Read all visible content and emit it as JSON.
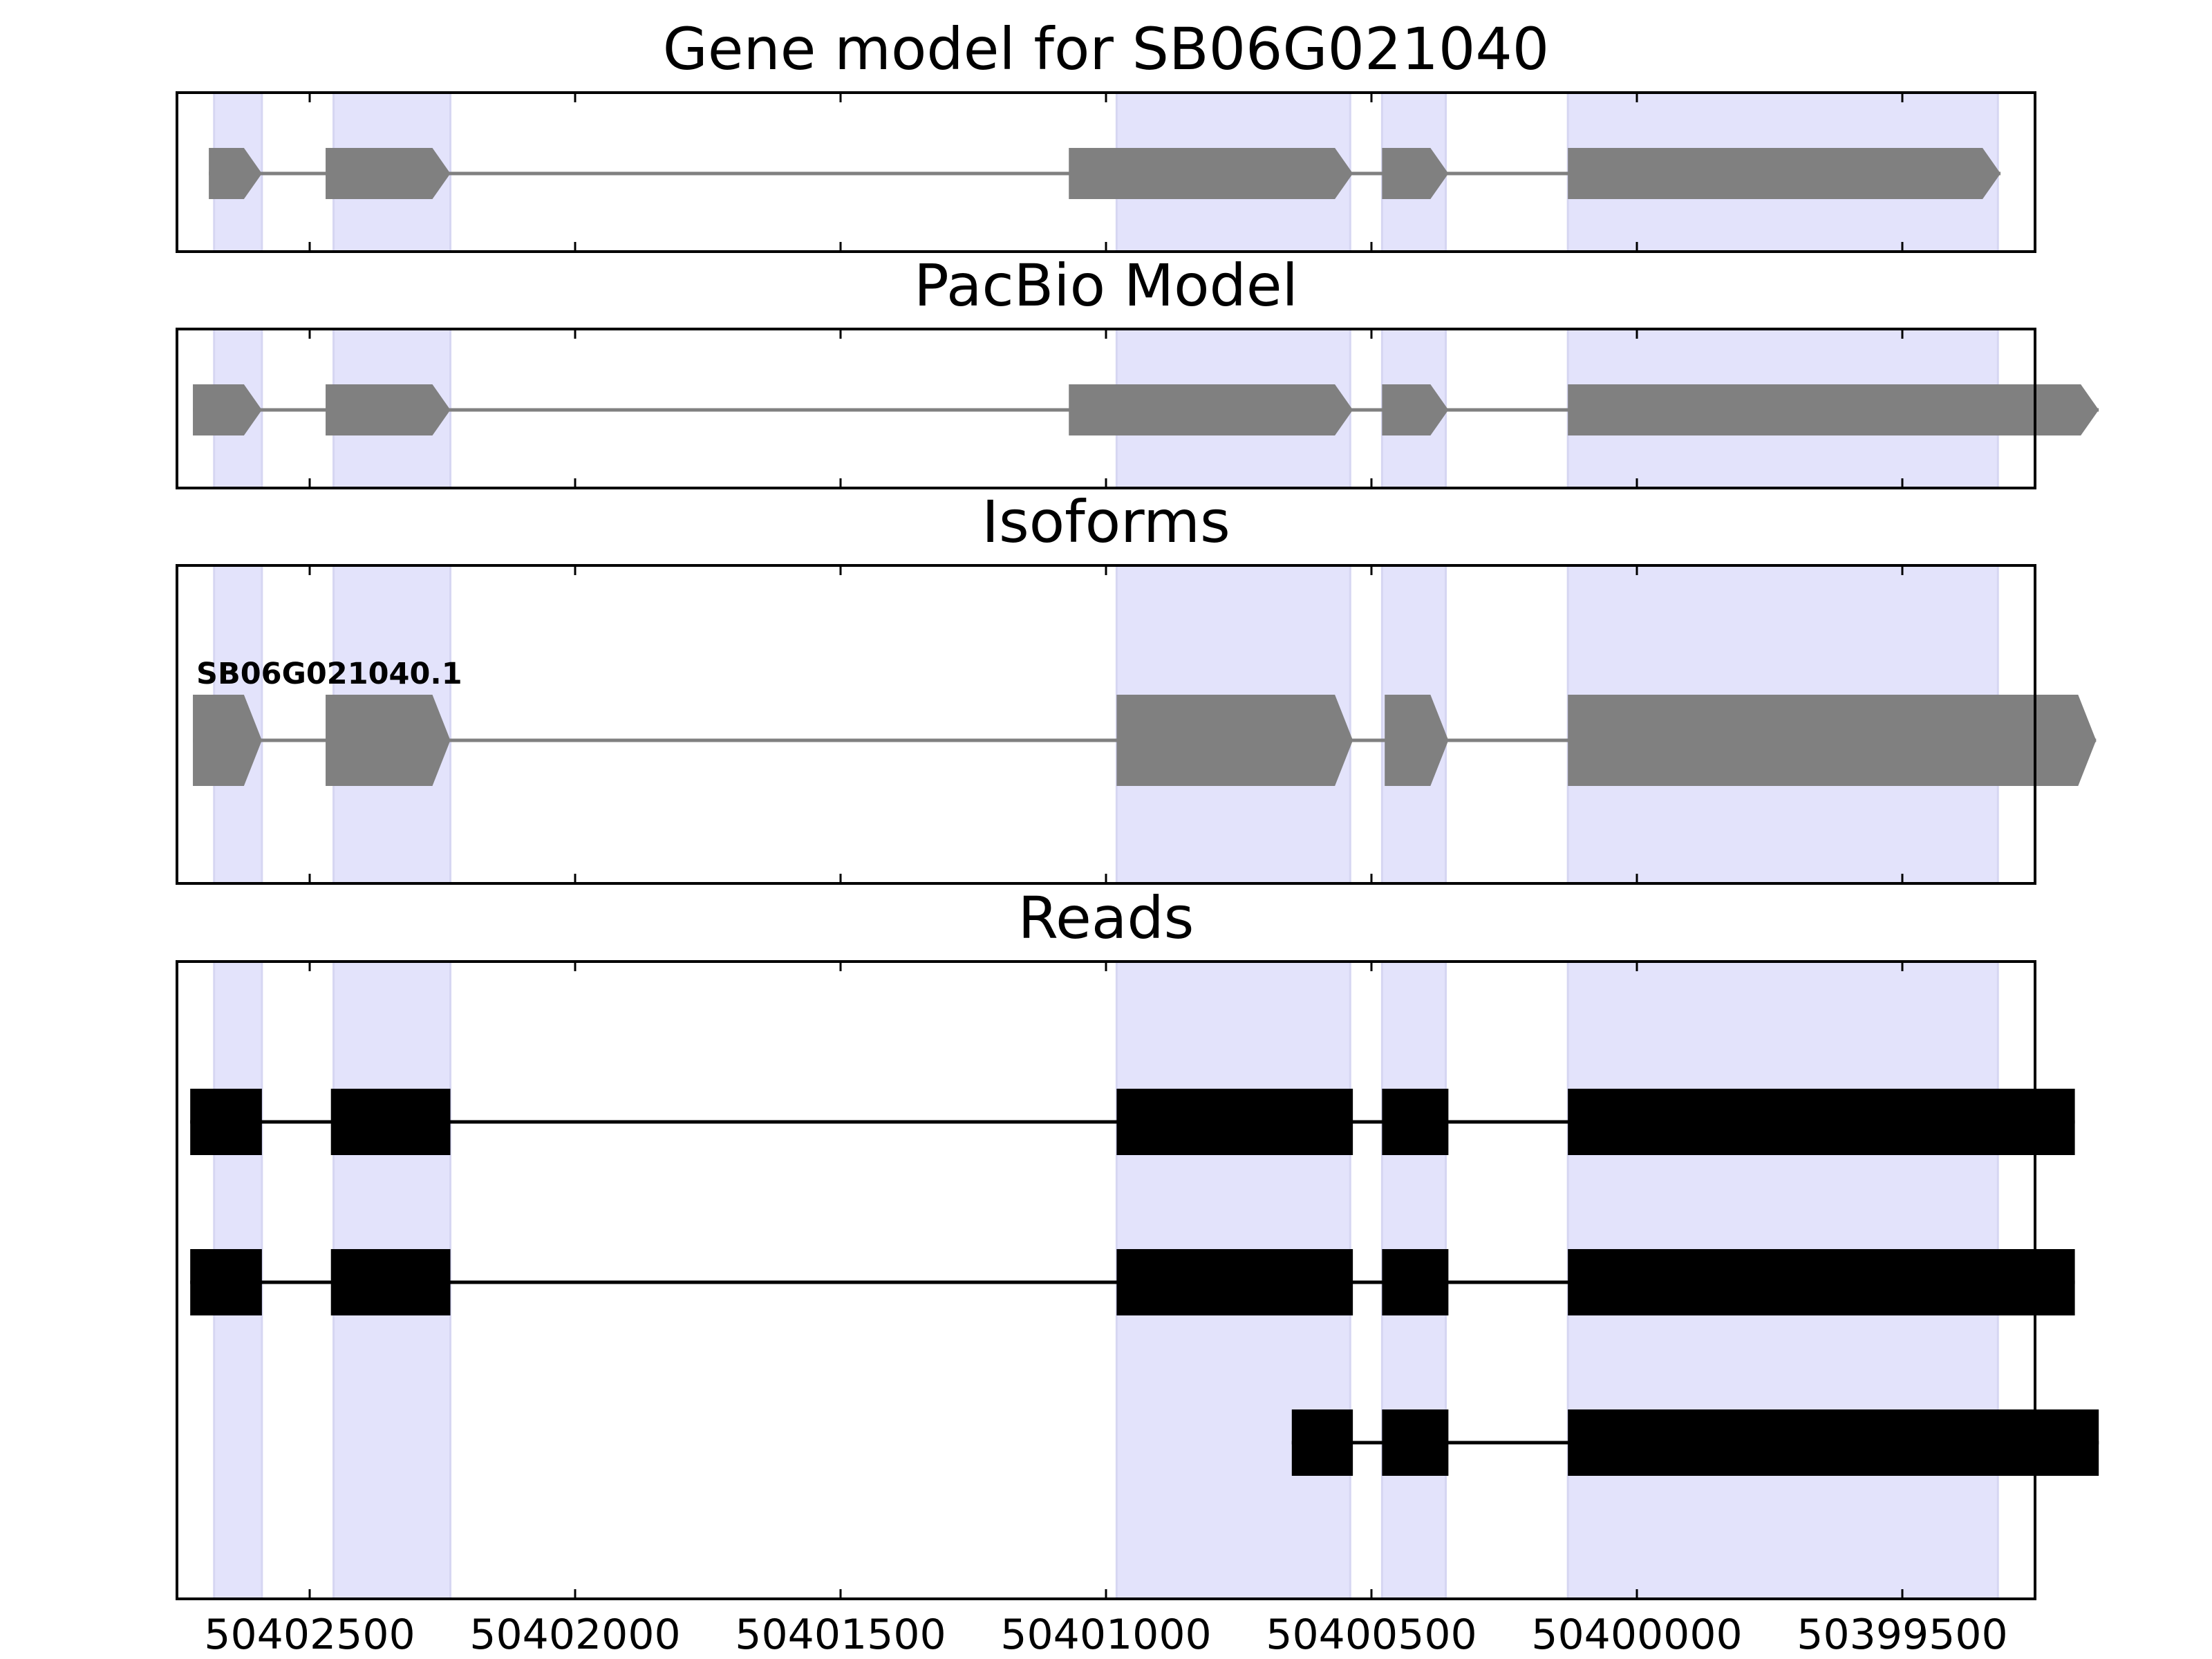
{
  "chart_data": {
    "type": "gene_model",
    "xlim": [
      50402750,
      50399250
    ],
    "x_inverted": true,
    "xticks": [
      50402500,
      50402000,
      50401500,
      50401000,
      50400500,
      50400000,
      50399500
    ],
    "xtick_labels": [
      "50402500",
      "50402000",
      "50401500",
      "50401000",
      "50400500",
      "50400000",
      "50399500"
    ],
    "exon_highlight_color": "#e3e3fb",
    "gene_color": "#808080",
    "read_color": "#000000",
    "highlight_regions": [
      [
        50402680,
        50402590
      ],
      [
        50402455,
        50402235
      ],
      [
        50400980,
        50400540
      ],
      [
        50400480,
        50400360
      ],
      [
        50400130,
        50399320
      ]
    ],
    "panels": [
      {
        "title": "Gene model for SB06G021040",
        "kind": "gene",
        "tracks": [
          {
            "label": "",
            "exons": [
              [
                50402690,
                50402590
              ],
              [
                50402470,
                50402235
              ],
              [
                50401070,
                50400535
              ],
              [
                50400480,
                50400355
              ],
              [
                50400130,
                50399315
              ]
            ]
          }
        ]
      },
      {
        "title": "PacBio Model",
        "kind": "gene",
        "tracks": [
          {
            "label": "",
            "exons": [
              [
                50402720,
                50402590
              ],
              [
                50402470,
                50402235
              ],
              [
                50401070,
                50400535
              ],
              [
                50400480,
                50400355
              ],
              [
                50400130,
                50399130
              ]
            ]
          }
        ]
      },
      {
        "title": "Isoforms",
        "kind": "gene",
        "tracks": [
          {
            "label": "SB06G021040.1",
            "exons": [
              [
                50402720,
                50402590
              ],
              [
                50402470,
                50402235
              ],
              [
                50400980,
                50400535
              ],
              [
                50400475,
                50400355
              ],
              [
                50400130,
                50399135
              ]
            ]
          }
        ]
      },
      {
        "title": "Reads",
        "kind": "reads",
        "tracks": [
          {
            "label": "",
            "exons": [
              [
                50402725,
                50402590
              ],
              [
                50402460,
                50402235
              ],
              [
                50400980,
                50400535
              ],
              [
                50400480,
                50400355
              ],
              [
                50400130,
                50399175
              ]
            ]
          },
          {
            "label": "",
            "exons": [
              [
                50402725,
                50402590
              ],
              [
                50402460,
                50402235
              ],
              [
                50400980,
                50400535
              ],
              [
                50400480,
                50400355
              ],
              [
                50400130,
                50399175
              ]
            ]
          },
          {
            "label": "",
            "exons": [
              [
                50400650,
                50400535
              ],
              [
                50400480,
                50400355
              ],
              [
                50400130,
                50399130
              ]
            ]
          }
        ]
      }
    ]
  }
}
